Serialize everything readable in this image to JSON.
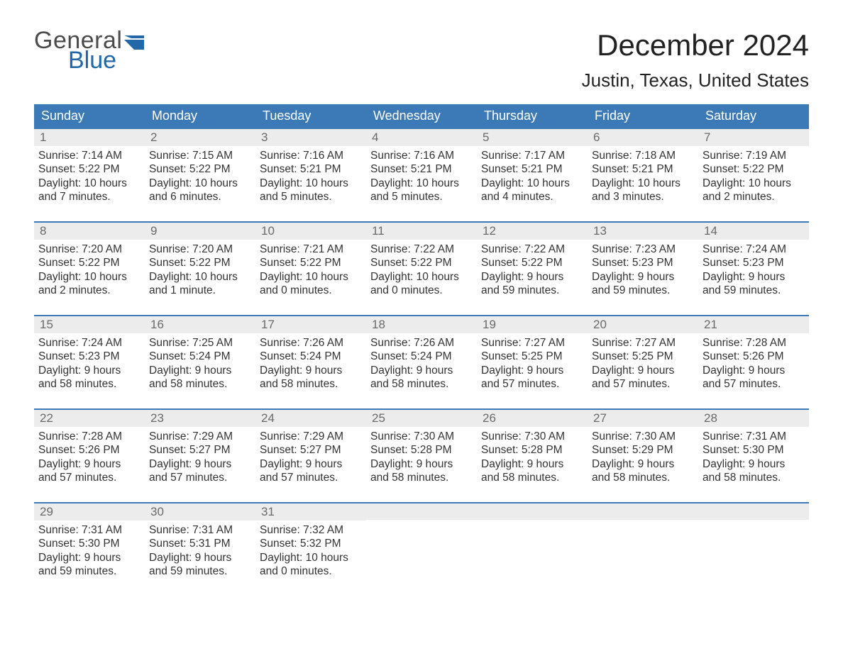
{
  "brand": {
    "word1": "General",
    "word2": "Blue",
    "word1_color": "#4a4a4a",
    "word2_color": "#2267a8",
    "flag_color": "#2267a8"
  },
  "title": "December 2024",
  "location": "Justin, Texas, United States",
  "colors": {
    "header_bg": "#3b79b7",
    "header_text": "#ffffff",
    "daynum_bg": "#ececec",
    "daynum_text": "#6a6a6a",
    "body_text": "#333333",
    "week_border": "#3b79b7",
    "page_bg": "#ffffff"
  },
  "fonts": {
    "title_size_pt": 32,
    "location_size_pt": 20,
    "weekday_size_pt": 14,
    "daynum_size_pt": 13,
    "body_size_pt": 12
  },
  "weekdays": [
    "Sunday",
    "Monday",
    "Tuesday",
    "Wednesday",
    "Thursday",
    "Friday",
    "Saturday"
  ],
  "labels": {
    "sunrise": "Sunrise:",
    "sunset": "Sunset:",
    "daylight": "Daylight:"
  },
  "weeks": [
    [
      {
        "day": "1",
        "sunrise": "7:14 AM",
        "sunset": "5:22 PM",
        "daylight_l1": "10 hours",
        "daylight_l2": "and 7 minutes."
      },
      {
        "day": "2",
        "sunrise": "7:15 AM",
        "sunset": "5:22 PM",
        "daylight_l1": "10 hours",
        "daylight_l2": "and 6 minutes."
      },
      {
        "day": "3",
        "sunrise": "7:16 AM",
        "sunset": "5:21 PM",
        "daylight_l1": "10 hours",
        "daylight_l2": "and 5 minutes."
      },
      {
        "day": "4",
        "sunrise": "7:16 AM",
        "sunset": "5:21 PM",
        "daylight_l1": "10 hours",
        "daylight_l2": "and 5 minutes."
      },
      {
        "day": "5",
        "sunrise": "7:17 AM",
        "sunset": "5:21 PM",
        "daylight_l1": "10 hours",
        "daylight_l2": "and 4 minutes."
      },
      {
        "day": "6",
        "sunrise": "7:18 AM",
        "sunset": "5:21 PM",
        "daylight_l1": "10 hours",
        "daylight_l2": "and 3 minutes."
      },
      {
        "day": "7",
        "sunrise": "7:19 AM",
        "sunset": "5:22 PM",
        "daylight_l1": "10 hours",
        "daylight_l2": "and 2 minutes."
      }
    ],
    [
      {
        "day": "8",
        "sunrise": "7:20 AM",
        "sunset": "5:22 PM",
        "daylight_l1": "10 hours",
        "daylight_l2": "and 2 minutes."
      },
      {
        "day": "9",
        "sunrise": "7:20 AM",
        "sunset": "5:22 PM",
        "daylight_l1": "10 hours",
        "daylight_l2": "and 1 minute."
      },
      {
        "day": "10",
        "sunrise": "7:21 AM",
        "sunset": "5:22 PM",
        "daylight_l1": "10 hours",
        "daylight_l2": "and 0 minutes."
      },
      {
        "day": "11",
        "sunrise": "7:22 AM",
        "sunset": "5:22 PM",
        "daylight_l1": "10 hours",
        "daylight_l2": "and 0 minutes."
      },
      {
        "day": "12",
        "sunrise": "7:22 AM",
        "sunset": "5:22 PM",
        "daylight_l1": "9 hours",
        "daylight_l2": "and 59 minutes."
      },
      {
        "day": "13",
        "sunrise": "7:23 AM",
        "sunset": "5:23 PM",
        "daylight_l1": "9 hours",
        "daylight_l2": "and 59 minutes."
      },
      {
        "day": "14",
        "sunrise": "7:24 AM",
        "sunset": "5:23 PM",
        "daylight_l1": "9 hours",
        "daylight_l2": "and 59 minutes."
      }
    ],
    [
      {
        "day": "15",
        "sunrise": "7:24 AM",
        "sunset": "5:23 PM",
        "daylight_l1": "9 hours",
        "daylight_l2": "and 58 minutes."
      },
      {
        "day": "16",
        "sunrise": "7:25 AM",
        "sunset": "5:24 PM",
        "daylight_l1": "9 hours",
        "daylight_l2": "and 58 minutes."
      },
      {
        "day": "17",
        "sunrise": "7:26 AM",
        "sunset": "5:24 PM",
        "daylight_l1": "9 hours",
        "daylight_l2": "and 58 minutes."
      },
      {
        "day": "18",
        "sunrise": "7:26 AM",
        "sunset": "5:24 PM",
        "daylight_l1": "9 hours",
        "daylight_l2": "and 58 minutes."
      },
      {
        "day": "19",
        "sunrise": "7:27 AM",
        "sunset": "5:25 PM",
        "daylight_l1": "9 hours",
        "daylight_l2": "and 57 minutes."
      },
      {
        "day": "20",
        "sunrise": "7:27 AM",
        "sunset": "5:25 PM",
        "daylight_l1": "9 hours",
        "daylight_l2": "and 57 minutes."
      },
      {
        "day": "21",
        "sunrise": "7:28 AM",
        "sunset": "5:26 PM",
        "daylight_l1": "9 hours",
        "daylight_l2": "and 57 minutes."
      }
    ],
    [
      {
        "day": "22",
        "sunrise": "7:28 AM",
        "sunset": "5:26 PM",
        "daylight_l1": "9 hours",
        "daylight_l2": "and 57 minutes."
      },
      {
        "day": "23",
        "sunrise": "7:29 AM",
        "sunset": "5:27 PM",
        "daylight_l1": "9 hours",
        "daylight_l2": "and 57 minutes."
      },
      {
        "day": "24",
        "sunrise": "7:29 AM",
        "sunset": "5:27 PM",
        "daylight_l1": "9 hours",
        "daylight_l2": "and 57 minutes."
      },
      {
        "day": "25",
        "sunrise": "7:30 AM",
        "sunset": "5:28 PM",
        "daylight_l1": "9 hours",
        "daylight_l2": "and 58 minutes."
      },
      {
        "day": "26",
        "sunrise": "7:30 AM",
        "sunset": "5:28 PM",
        "daylight_l1": "9 hours",
        "daylight_l2": "and 58 minutes."
      },
      {
        "day": "27",
        "sunrise": "7:30 AM",
        "sunset": "5:29 PM",
        "daylight_l1": "9 hours",
        "daylight_l2": "and 58 minutes."
      },
      {
        "day": "28",
        "sunrise": "7:31 AM",
        "sunset": "5:30 PM",
        "daylight_l1": "9 hours",
        "daylight_l2": "and 58 minutes."
      }
    ],
    [
      {
        "day": "29",
        "sunrise": "7:31 AM",
        "sunset": "5:30 PM",
        "daylight_l1": "9 hours",
        "daylight_l2": "and 59 minutes."
      },
      {
        "day": "30",
        "sunrise": "7:31 AM",
        "sunset": "5:31 PM",
        "daylight_l1": "9 hours",
        "daylight_l2": "and 59 minutes."
      },
      {
        "day": "31",
        "sunrise": "7:32 AM",
        "sunset": "5:32 PM",
        "daylight_l1": "10 hours",
        "daylight_l2": "and 0 minutes."
      },
      null,
      null,
      null,
      null
    ]
  ]
}
